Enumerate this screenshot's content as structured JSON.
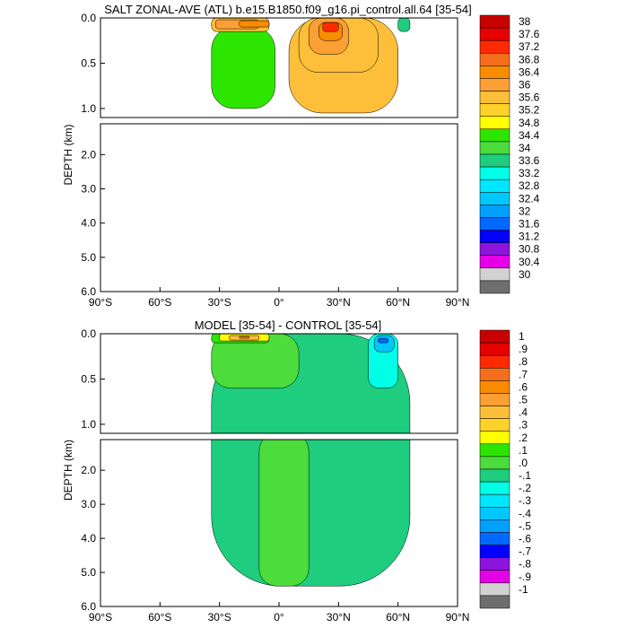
{
  "chart_data": [
    {
      "type": "contour",
      "title": "SALT ZONAL-AVE (ATL) b.e15.B1850.f09_g16.pi_control.all.64 [35-54]",
      "ylabel": "DEPTH (km)",
      "x_ticks": [
        "90°S",
        "60°S",
        "30°S",
        "0°",
        "30°N",
        "60°N",
        "90°N"
      ],
      "xlim": [
        -90,
        90
      ],
      "y_ticks_upper": [
        "0.0",
        "0.5",
        "1.0"
      ],
      "y_ticks_lower": [
        "2.0",
        "3.0",
        "4.0",
        "5.0",
        "6.0"
      ],
      "ylim_upper": [
        0,
        1.1
      ],
      "ylim_lower": [
        1.1,
        6.0
      ],
      "data_extent": {
        "lat_min": -34,
        "lat_max": 66,
        "max_depth": 5.4
      },
      "fields": [
        {
          "lat": [
            -34,
            -2
          ],
          "depth": [
            0.1,
            1.0
          ],
          "value": 34.8
        },
        {
          "lat": [
            -34,
            -5
          ],
          "depth": [
            0.0,
            0.15
          ],
          "value": 35.6
        },
        {
          "lat": [
            -32,
            -10
          ],
          "depth": [
            0.02,
            0.12
          ],
          "value": 36.4
        },
        {
          "lat": [
            -20,
            -5
          ],
          "depth": [
            0.03,
            0.1
          ],
          "value": 36.8
        },
        {
          "lat": [
            5,
            60
          ],
          "depth": [
            0.0,
            1.05
          ],
          "value": 35.6
        },
        {
          "lat": [
            10,
            50
          ],
          "depth": [
            0.0,
            0.6
          ],
          "value": 36.0
        },
        {
          "lat": [
            15,
            35
          ],
          "depth": [
            0.0,
            0.4
          ],
          "value": 36.4
        },
        {
          "lat": [
            20,
            32
          ],
          "depth": [
            0.05,
            0.25
          ],
          "value": 36.8
        },
        {
          "lat": [
            22,
            30
          ],
          "depth": [
            0.05,
            0.15
          ],
          "value": 37.2
        },
        {
          "lat": [
            60,
            66
          ],
          "depth": [
            0.0,
            0.15
          ],
          "value": 34.0
        }
      ],
      "colorbar": {
        "labels": [
          "38",
          "37.6",
          "37.2",
          "36.8",
          "36.4",
          "36",
          "35.6",
          "35.2",
          "34.8",
          "34.4",
          "34",
          "33.6",
          "33.2",
          "32.8",
          "32.4",
          "32",
          "31.6",
          "31.2",
          "30.8",
          "30.4",
          "30"
        ],
        "colors": [
          "#c80000",
          "#e60000",
          "#ff2a00",
          "#f56e1e",
          "#fa8c00",
          "#fca035",
          "#fdbf3a",
          "#ffd22a",
          "#ffff00",
          "#2de600",
          "#4cdc3c",
          "#1ecd7e",
          "#00ffe6",
          "#00e6ff",
          "#00c8ff",
          "#00a0ff",
          "#0069ff",
          "#0000ff",
          "#8c14dc",
          "#e600e6",
          "#d2d2d2",
          "#6e6e6e"
        ]
      }
    },
    {
      "type": "contour",
      "title": "MODEL [35-54] - CONTROL [35-54]",
      "ylabel": "DEPTH (km)",
      "x_ticks": [
        "90°S",
        "60°S",
        "30°S",
        "0°",
        "30°N",
        "60°N",
        "90°N"
      ],
      "xlim": [
        -90,
        90
      ],
      "y_ticks_upper": [
        "0.0",
        "0.5",
        "1.0"
      ],
      "y_ticks_lower": [
        "2.0",
        "3.0",
        "4.0",
        "5.0",
        "6.0"
      ],
      "ylim_upper": [
        0,
        1.1
      ],
      "ylim_lower": [
        1.1,
        6.0
      ],
      "data_extent": {
        "lat_min": -34,
        "lat_max": 66,
        "max_depth": 5.4
      },
      "fields": [
        {
          "lat": [
            -34,
            66
          ],
          "depth": [
            0.0,
            5.4
          ],
          "value": -0.05
        },
        {
          "lat": [
            -34,
            10
          ],
          "depth": [
            0.0,
            0.6
          ],
          "value": 0.05
        },
        {
          "lat": [
            -34,
            -5
          ],
          "depth": [
            0.0,
            0.1
          ],
          "value": 0.15
        },
        {
          "lat": [
            -30,
            -5
          ],
          "depth": [
            0.0,
            0.08
          ],
          "value": 0.25
        },
        {
          "lat": [
            -25,
            -10
          ],
          "depth": [
            0.02,
            0.07
          ],
          "value": 0.45
        },
        {
          "lat": [
            -20,
            -15
          ],
          "depth": [
            0.03,
            0.05
          ],
          "value": 0.65
        },
        {
          "lat": [
            -10,
            15
          ],
          "depth": [
            1.1,
            5.4
          ],
          "value": 0.05
        },
        {
          "lat": [
            45,
            60
          ],
          "depth": [
            0.0,
            0.6
          ],
          "value": -0.15
        },
        {
          "lat": [
            48,
            58
          ],
          "depth": [
            0.02,
            0.2
          ],
          "value": -0.35
        },
        {
          "lat": [
            50,
            55
          ],
          "depth": [
            0.05,
            0.1
          ],
          "value": -0.55
        }
      ],
      "colorbar": {
        "labels": [
          "1",
          ".9",
          ".8",
          ".7",
          ".6",
          ".5",
          ".4",
          ".3",
          ".2",
          ".1",
          ".0",
          "-.1",
          "-.2",
          "-.3",
          "-.4",
          "-.5",
          "-.6",
          "-.7",
          "-.8",
          "-.9",
          "-1"
        ],
        "colors": [
          "#c80000",
          "#e60000",
          "#ff2a00",
          "#f56e1e",
          "#fa8c00",
          "#fca035",
          "#fdbf3a",
          "#ffd22a",
          "#ffff00",
          "#2de600",
          "#4cdc3c",
          "#1ecd7e",
          "#00ffe6",
          "#00e6ff",
          "#00c8ff",
          "#00a0ff",
          "#0069ff",
          "#0000ff",
          "#8c14dc",
          "#e600e6",
          "#d2d2d2",
          "#6e6e6e"
        ]
      }
    }
  ]
}
